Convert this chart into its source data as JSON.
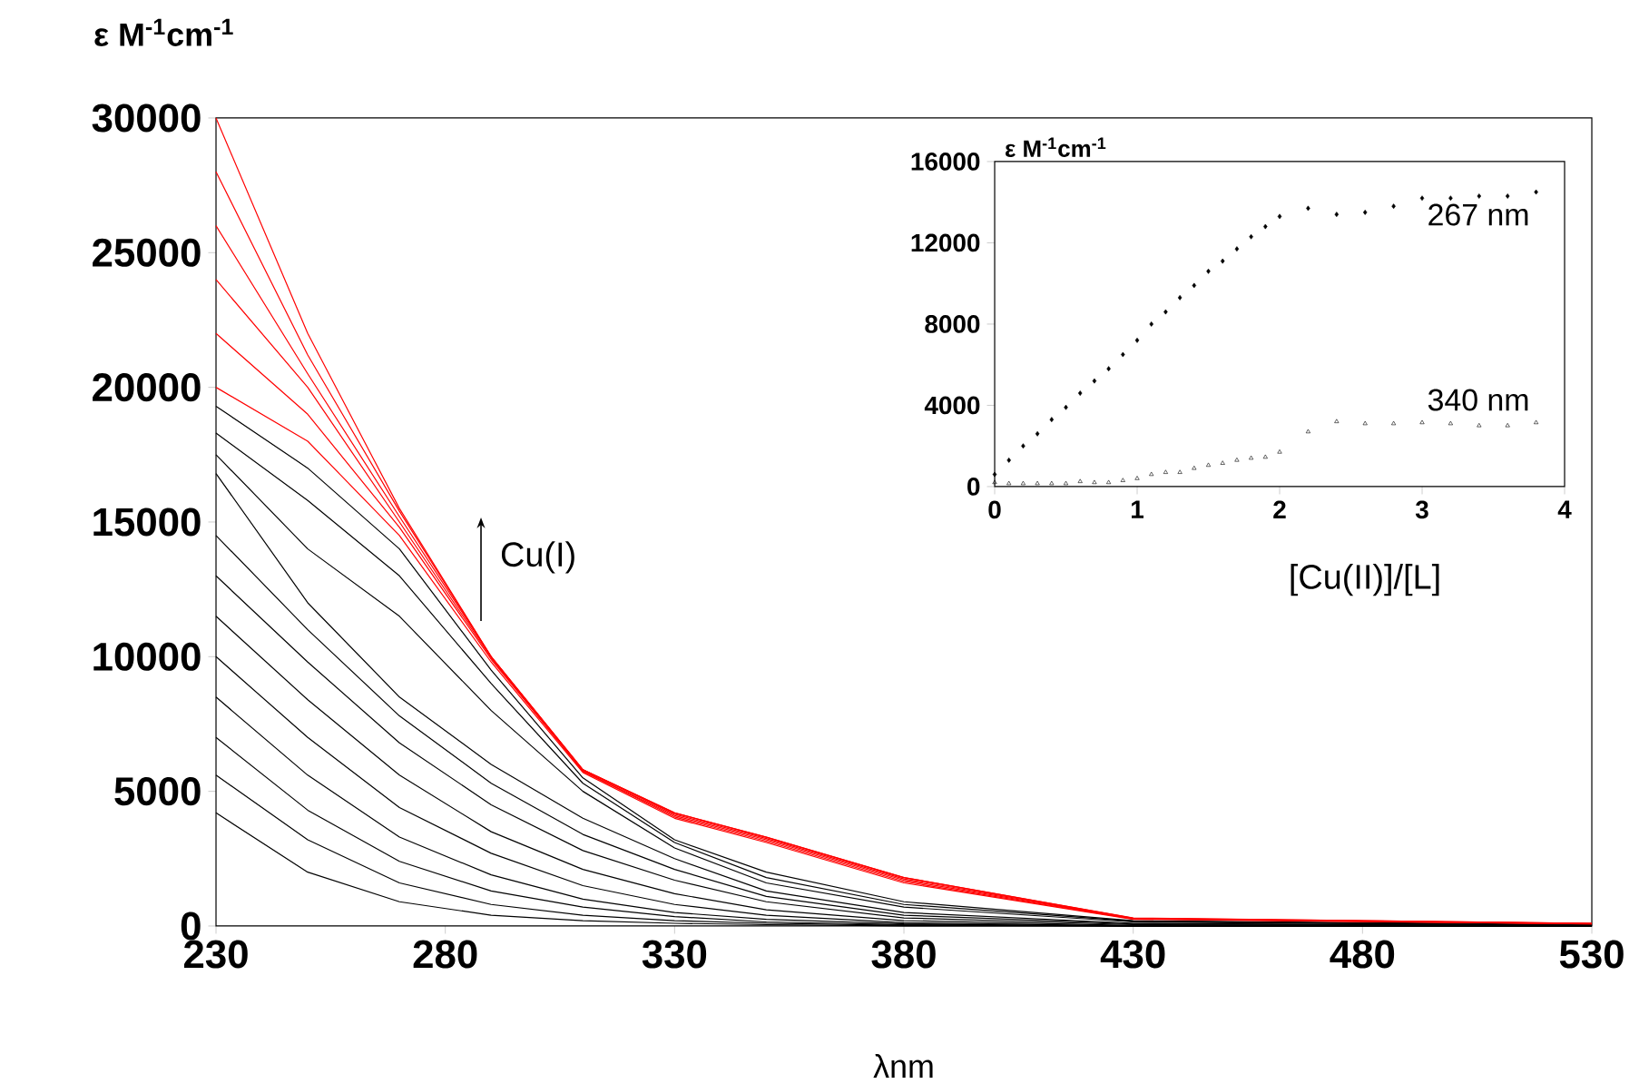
{
  "chart_data": [
    {
      "type": "line",
      "ylabel": "ε M$^{-1}$cm$^{-1}$",
      "xlabel": "λnm",
      "annotations": [
        "Cu(I)"
      ],
      "xlim": [
        230,
        530
      ],
      "xticks": [
        230,
        280,
        330,
        380,
        430,
        480,
        530
      ],
      "ylim": [
        0,
        30000
      ],
      "yticks": [
        0,
        5000,
        10000,
        15000,
        20000,
        25000,
        30000
      ],
      "x": [
        230,
        250,
        270,
        290,
        310,
        330,
        350,
        380,
        430,
        530
      ],
      "series": [
        {
          "color": "#000000",
          "values": [
            4200,
            2000,
            900,
            400,
            200,
            100,
            50,
            0,
            0,
            0
          ]
        },
        {
          "color": "#000000",
          "values": [
            5600,
            3200,
            1600,
            800,
            400,
            200,
            100,
            30,
            0,
            0
          ]
        },
        {
          "color": "#000000",
          "values": [
            7000,
            4300,
            2400,
            1300,
            700,
            350,
            150,
            50,
            0,
            0
          ]
        },
        {
          "color": "#000000",
          "values": [
            8500,
            5600,
            3300,
            1900,
            1000,
            500,
            250,
            80,
            0,
            0
          ]
        },
        {
          "color": "#000000",
          "values": [
            10000,
            7000,
            4400,
            2700,
            1500,
            800,
            400,
            120,
            0,
            0
          ]
        },
        {
          "color": "#000000",
          "values": [
            11500,
            8400,
            5600,
            3500,
            2100,
            1200,
            600,
            200,
            20,
            0
          ]
        },
        {
          "color": "#000000",
          "values": [
            13000,
            9800,
            6800,
            4500,
            2800,
            1700,
            900,
            300,
            50,
            0
          ]
        },
        {
          "color": "#000000",
          "values": [
            14500,
            11000,
            7800,
            5300,
            3400,
            2100,
            1100,
            400,
            80,
            0
          ]
        },
        {
          "color": "#000000",
          "values": [
            16800,
            12000,
            8500,
            6000,
            4000,
            2500,
            1300,
            500,
            100,
            0
          ]
        },
        {
          "color": "#000000",
          "values": [
            17500,
            14000,
            11500,
            8000,
            5000,
            2900,
            1600,
            700,
            150,
            20
          ]
        },
        {
          "color": "#000000",
          "values": [
            18300,
            15800,
            13000,
            9000,
            5300,
            3100,
            1800,
            800,
            180,
            30
          ]
        },
        {
          "color": "#000000",
          "values": [
            19300,
            17000,
            14000,
            9500,
            5500,
            3200,
            2000,
            900,
            200,
            50
          ]
        },
        {
          "color": "#ff0000",
          "values": [
            20000,
            18000,
            14500,
            9800,
            5700,
            4000,
            3100,
            1600,
            250,
            80
          ]
        },
        {
          "color": "#ff0000",
          "values": [
            22000,
            19000,
            14800,
            9900,
            5750,
            4050,
            3150,
            1650,
            260,
            80
          ]
        },
        {
          "color": "#ff0000",
          "values": [
            24000,
            20000,
            15000,
            9950,
            5750,
            4100,
            3200,
            1700,
            270,
            90
          ]
        },
        {
          "color": "#ff0000",
          "values": [
            26000,
            20500,
            15200,
            10000,
            5800,
            4150,
            3250,
            1750,
            280,
            90
          ]
        },
        {
          "color": "#ff0000",
          "values": [
            28000,
            21200,
            15400,
            10000,
            5800,
            4200,
            3300,
            1800,
            290,
            100
          ]
        },
        {
          "color": "#ff0000",
          "values": [
            30000,
            22000,
            15500,
            10000,
            5800,
            4200,
            3300,
            1800,
            300,
            100
          ]
        }
      ]
    },
    {
      "type": "scatter",
      "ylabel": "ε M$^{-1}$cm$^{-1}$",
      "xlabel": "[Cu(II)]/[L]",
      "xlim": [
        0,
        4
      ],
      "xticks": [
        0,
        1,
        2,
        3,
        4
      ],
      "ylim": [
        0,
        16000
      ],
      "yticks": [
        0,
        4000,
        8000,
        12000,
        16000
      ],
      "x": [
        0,
        0.1,
        0.2,
        0.3,
        0.4,
        0.5,
        0.6,
        0.7,
        0.8,
        0.9,
        1.0,
        1.1,
        1.2,
        1.3,
        1.4,
        1.5,
        1.6,
        1.7,
        1.8,
        1.9,
        2.0,
        2.2,
        2.4,
        2.6,
        2.8,
        3.0,
        3.2,
        3.4,
        3.6,
        3.8
      ],
      "series": [
        {
          "name": "267 nm",
          "color": "#000000",
          "marker": "diamond",
          "values": [
            600,
            1300,
            2000,
            2600,
            3300,
            3900,
            4600,
            5200,
            5800,
            6500,
            7200,
            8000,
            8600,
            9300,
            9900,
            10600,
            11100,
            11700,
            12300,
            12800,
            13300,
            13700,
            13400,
            13500,
            13800,
            14200,
            14200,
            14300,
            14300,
            14500
          ]
        },
        {
          "name": "340 nm",
          "color": "#000000",
          "marker": "triangle",
          "values": [
            200,
            150,
            150,
            150,
            150,
            150,
            250,
            200,
            200,
            300,
            400,
            600,
            700,
            700,
            900,
            1050,
            1150,
            1300,
            1400,
            1450,
            1700,
            2700,
            3200,
            3100,
            3100,
            3150,
            3100,
            3000,
            3000,
            3150
          ]
        }
      ]
    }
  ]
}
